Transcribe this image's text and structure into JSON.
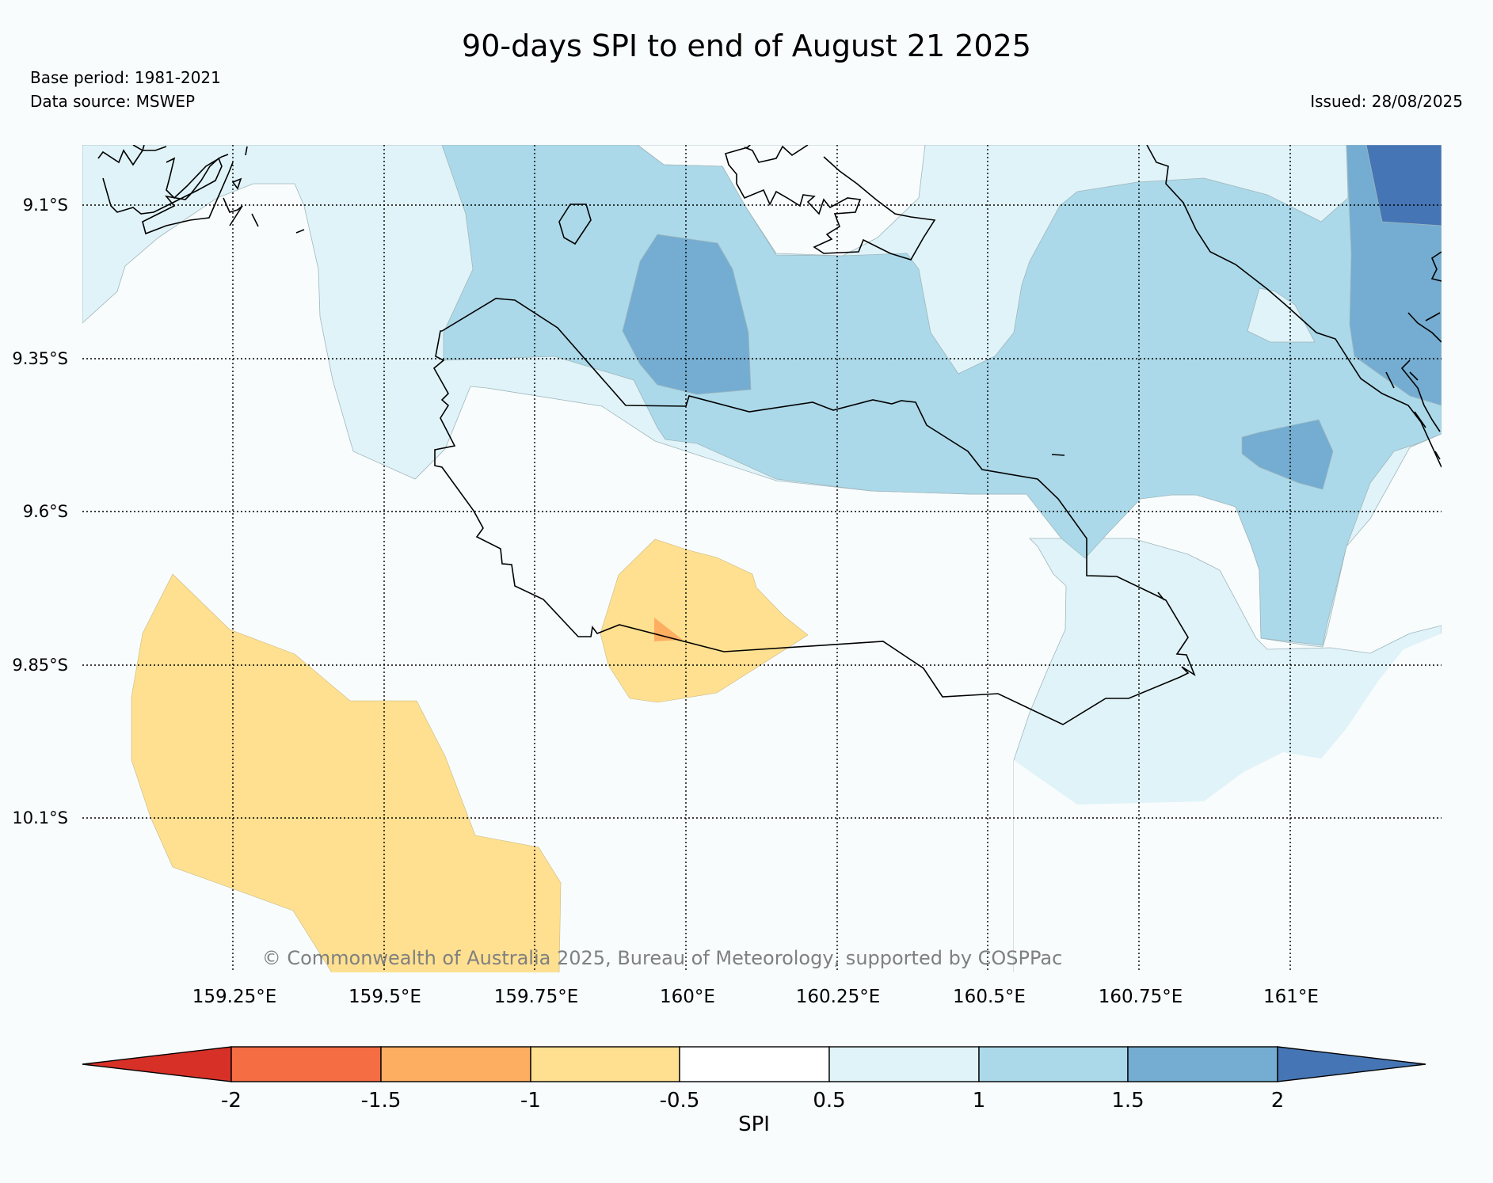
{
  "title": "90-days SPI to end of August 21 2025",
  "base_period": "Base period: 1981-2021",
  "data_source": "Data source: MSWEP",
  "issued": "Issued: 28/08/2025",
  "copyright": "© Commonwealth of Australia 2025, Bureau of Meteorology, supported by COSPPac",
  "lat_labels": [
    "9.1°S",
    "9.35°S",
    "9.6°S",
    "9.85°S",
    "10.1°S"
  ],
  "lon_labels": [
    "159.25°E",
    "159.5°E",
    "159.75°E",
    "160°E",
    "160.25°E",
    "160.5°E",
    "160.75°E",
    "161°E"
  ],
  "colorbar": {
    "title": "SPI",
    "ticks": [
      "-2",
      "-1.5",
      "-1",
      "-0.5",
      "0.5",
      "1",
      "1.5",
      "2"
    ],
    "colors": {
      "lt_-2": "#d73027",
      "-2_-1.5": "#f46d43",
      "-1.5_-1": "#fdae61",
      "-1_-0.5": "#fee090",
      "-0.5_0.5": "#ffffff",
      "0.5_1": "#e0f3f8",
      "1_1.5": "#abd9e9",
      "1.5_2": "#74add1",
      "gt_2": "#4575b4"
    }
  }
}
